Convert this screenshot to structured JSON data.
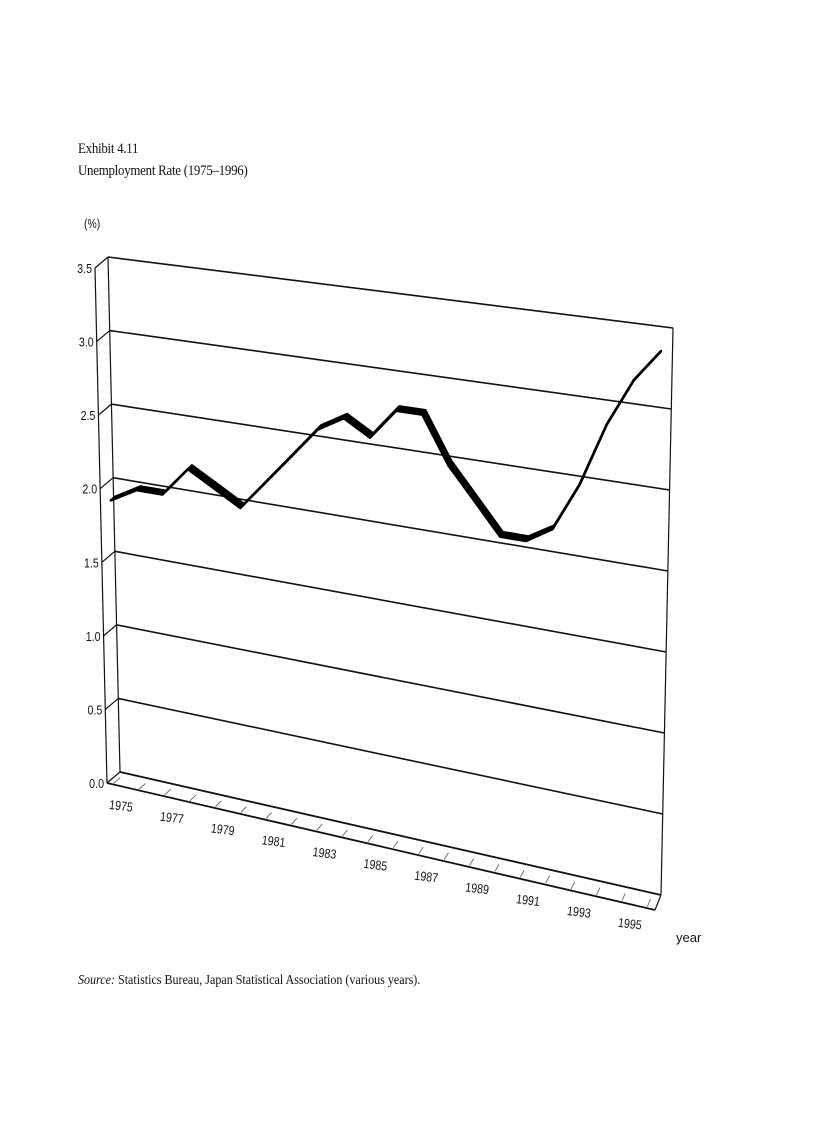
{
  "header": {
    "exhibit": "Exhibit 4.11",
    "title": "Unemployment Rate (1975–1996)"
  },
  "axis": {
    "y_unit": "(%)",
    "x_unit": "year"
  },
  "footer": {
    "source_label": "Source:",
    "source_text": " Statistics Bureau, Japan Statistical Association (various years)."
  },
  "colors": {
    "line": "#000000",
    "grid": "#111111",
    "background": "#ffffff"
  },
  "chart_data": {
    "type": "line",
    "title": "Unemployment Rate (1975–1996)",
    "subtitle": "Exhibit 4.11",
    "xlabel": "year",
    "ylabel": "(%)",
    "ylim": [
      0,
      3.5
    ],
    "grid": true,
    "style": "3d-perspective ribbon",
    "y_ticks": [
      "0.0",
      "0.5",
      "1.0",
      "1.5",
      "2.0",
      "2.5",
      "3.0",
      "3.5"
    ],
    "x_tick_labels": [
      "1975",
      "1977",
      "1979",
      "1981",
      "1983",
      "1985",
      "1987",
      "1989",
      "1991",
      "1993",
      "1995"
    ],
    "x": [
      1975,
      1976,
      1977,
      1978,
      1979,
      1980,
      1981,
      1982,
      1983,
      1984,
      1985,
      1986,
      1987,
      1988,
      1989,
      1990,
      1991,
      1992,
      1993,
      1994,
      1995,
      1996
    ],
    "series": [
      {
        "name": "Unemployment rate (%)",
        "values": [
          1.9,
          2.0,
          2.0,
          2.2,
          2.1,
          2.0,
          2.2,
          2.4,
          2.6,
          2.7,
          2.6,
          2.8,
          2.8,
          2.5,
          2.3,
          2.1,
          2.1,
          2.2,
          2.5,
          2.9,
          3.2,
          3.4
        ]
      }
    ],
    "source": "Statistics Bureau, Japan Statistical Association (various years)."
  }
}
